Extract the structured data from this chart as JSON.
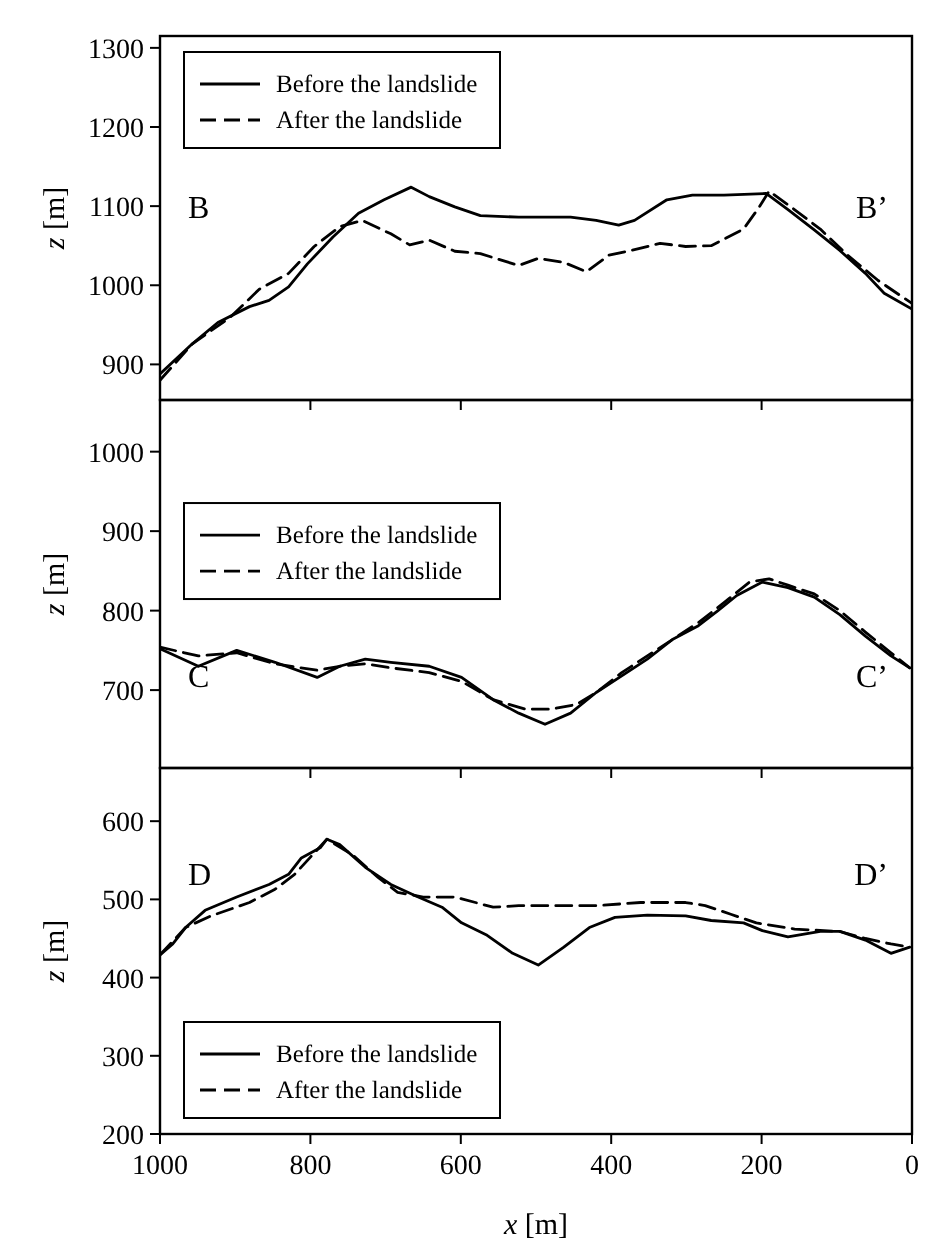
{
  "chart_data": [
    {
      "type": "line",
      "xlim": [
        1000,
        0
      ],
      "xticks": [
        1000,
        800,
        600,
        400,
        200,
        0
      ],
      "ylim": [
        855,
        1315
      ],
      "yticks": [
        900,
        1000,
        1100,
        1200,
        1300
      ],
      "ylabel": "z [m]",
      "tick_labels": "y",
      "legend": "top left",
      "grid": false,
      "annotations": [
        "B",
        "B’"
      ],
      "series": [
        {
          "name": "Before the landslide",
          "color": "#000000",
          "line_style": "solid",
          "x": [
            1000,
            957,
            923,
            881,
            855,
            829,
            804,
            770,
            736,
            702,
            666,
            642,
            608,
            574,
            523,
            454,
            420,
            390,
            369,
            326,
            292,
            250,
            194,
            164,
            130,
            96,
            62,
            37,
            0
          ],
          "values": [
            888,
            926,
            953,
            973,
            981,
            998,
            1027,
            1061,
            1091,
            1108,
            1124,
            1112,
            1099,
            1088,
            1086,
            1086,
            1082,
            1076,
            1082,
            1108,
            1114,
            1114,
            1116,
            1095,
            1070,
            1044,
            1015,
            990,
            970
          ]
        },
        {
          "name": "After the landslide",
          "color": "#000000",
          "line_style": "dashed",
          "x": [
            1000,
            957,
            906,
            868,
            829,
            795,
            761,
            731,
            693,
            668,
            642,
            608,
            574,
            523,
            497,
            463,
            433,
            403,
            373,
            335,
            301,
            267,
            224,
            203,
            190,
            161,
            122,
            88,
            45,
            0
          ],
          "values": [
            880,
            926,
            960,
            995,
            1015,
            1049,
            1074,
            1082,
            1065,
            1051,
            1057,
            1043,
            1040,
            1025,
            1034,
            1029,
            1017,
            1038,
            1044,
            1053,
            1049,
            1050,
            1071,
            1099,
            1119,
            1099,
            1071,
            1040,
            1006,
            977
          ]
        }
      ]
    },
    {
      "type": "line",
      "xlim": [
        1000,
        0
      ],
      "xticks": [
        1000,
        800,
        600,
        400,
        200,
        0
      ],
      "ylim": [
        602,
        1065
      ],
      "yticks": [
        700,
        800,
        900,
        1000
      ],
      "ylabel": "z [m]",
      "tick_labels": "y",
      "legend": "left",
      "grid": false,
      "annotations": [
        "C",
        "C’"
      ],
      "series": [
        {
          "name": "Before the landslide",
          "color": "#000000",
          "line_style": "solid",
          "x": [
            1000,
            949,
            898,
            847,
            791,
            761,
            727,
            693,
            642,
            599,
            557,
            523,
            488,
            454,
            420,
            386,
            352,
            318,
            284,
            258,
            233,
            199,
            165,
            130,
            96,
            62,
            28,
            3
          ],
          "values": [
            752,
            730,
            750,
            735,
            716,
            730,
            739,
            735,
            730,
            716,
            688,
            671,
            657,
            671,
            697,
            718,
            739,
            764,
            781,
            800,
            819,
            836,
            829,
            817,
            795,
            768,
            743,
            728
          ]
        },
        {
          "name": "After the landslide",
          "color": "#000000",
          "line_style": "dashed",
          "x": [
            1000,
            949,
            898,
            847,
            791,
            761,
            727,
            693,
            642,
            599,
            557,
            514,
            480,
            446,
            420,
            386,
            352,
            318,
            284,
            250,
            216,
            190,
            165,
            130,
            96,
            62,
            28,
            3
          ],
          "values": [
            754,
            743,
            747,
            733,
            725,
            730,
            733,
            728,
            722,
            711,
            688,
            676,
            676,
            682,
            697,
            722,
            743,
            764,
            785,
            810,
            836,
            840,
            832,
            821,
            800,
            773,
            747,
            728
          ]
        }
      ]
    },
    {
      "type": "line",
      "xlim": [
        1000,
        0
      ],
      "xticks": [
        1000,
        800,
        600,
        400,
        200,
        0
      ],
      "ylim": [
        200,
        668
      ],
      "yticks": [
        200,
        300,
        400,
        500,
        600
      ],
      "xlabel": "x [m]",
      "ylabel": "z [m]",
      "legend": "bottom left",
      "grid": false,
      "annotations": [
        "D",
        "D’"
      ],
      "series": [
        {
          "name": "Before the landslide",
          "color": "#000000",
          "line_style": "solid",
          "x": [
            1000,
            983,
            966,
            940,
            898,
            855,
            829,
            812,
            787,
            778,
            761,
            727,
            693,
            659,
            625,
            599,
            565,
            531,
            497,
            463,
            429,
            395,
            352,
            301,
            267,
            224,
            199,
            165,
            122,
            96,
            62,
            28,
            3
          ],
          "values": [
            429,
            443,
            464,
            486,
            503,
            519,
            532,
            553,
            566,
            577,
            570,
            541,
            519,
            504,
            490,
            470,
            454,
            431,
            416,
            439,
            464,
            477,
            480,
            479,
            473,
            470,
            460,
            452,
            459,
            459,
            448,
            431,
            439
          ]
        },
        {
          "name": "After the landslide",
          "color": "#000000",
          "line_style": "dashed",
          "x": [
            1000,
            966,
            932,
            881,
            847,
            821,
            778,
            744,
            710,
            684,
            650,
            608,
            557,
            523,
            471,
            420,
            361,
            301,
            275,
            241,
            207,
            156,
            96,
            62,
            28,
            3
          ],
          "values": [
            429,
            464,
            479,
            496,
            513,
            532,
            577,
            557,
            528,
            509,
            503,
            503,
            490,
            492,
            492,
            492,
            496,
            496,
            492,
            481,
            470,
            462,
            459,
            450,
            443,
            439
          ]
        }
      ]
    }
  ]
}
